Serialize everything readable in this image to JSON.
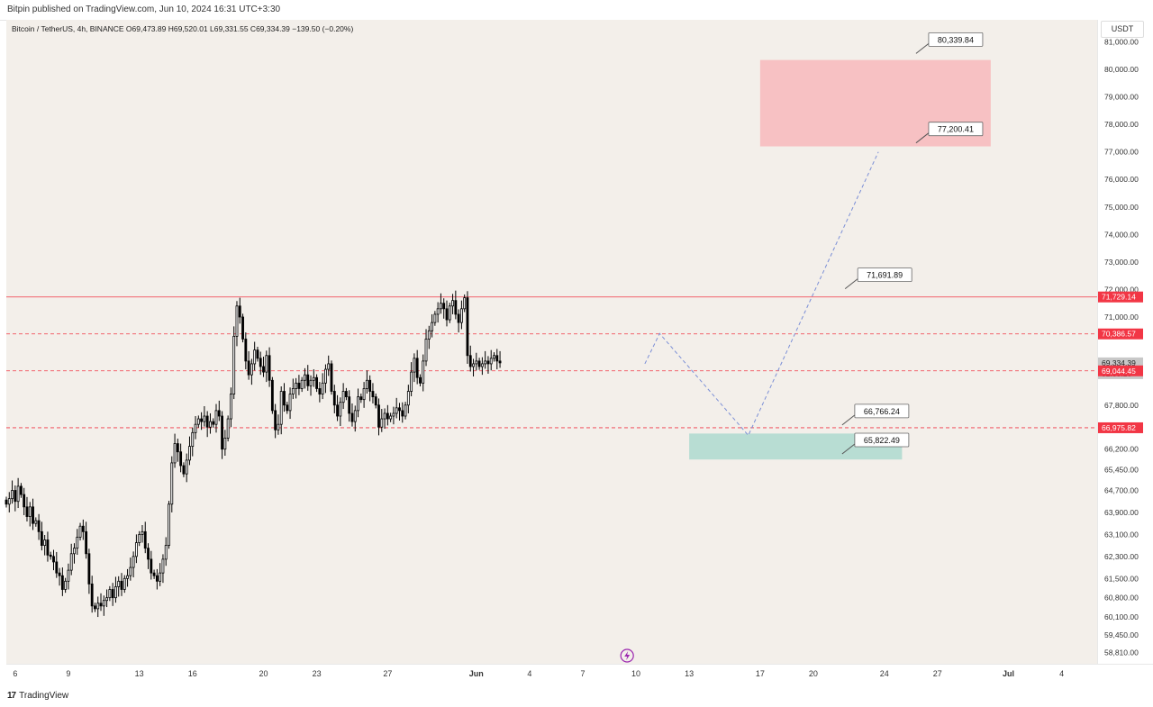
{
  "header": {
    "published": "Bitpin published on TradingView.com, Jun 10, 2024 16:31 UTC+3:30"
  },
  "legend": {
    "text": "Bitcoin / TetherUS, 4h, BINANCE  O69,473.89  H69,520.01  L69,331.55  C69,334.39  −139.50 (−0.20%)"
  },
  "currency": "USDT",
  "footer": {
    "brand": "TradingView"
  },
  "chart_data": {
    "type": "candlestick",
    "symbol": "Bitcoin / TetherUS",
    "interval": "4h",
    "exchange": "BINANCE",
    "ohlc": {
      "open": 69473.89,
      "high": 69520.01,
      "low": 69331.55,
      "close": 69334.39,
      "change": -139.5,
      "change_pct": -0.2
    },
    "ylim": [
      58400,
      81800
    ],
    "y_ticks": [
      81000,
      80000,
      79000,
      78000,
      77000,
      76000,
      75000,
      74000,
      73000,
      72000,
      71000,
      67800,
      66200,
      65450,
      64700,
      63900,
      63100,
      62300,
      61500,
      60800,
      60100,
      59450,
      58810
    ],
    "y_tick_labels": [
      "81,000.00",
      "80,000.00",
      "79,000.00",
      "78,000.00",
      "77,000.00",
      "76,000.00",
      "75,000.00",
      "74,000.00",
      "73,000.00",
      "72,000.00",
      "71,000.00",
      "67,800.00",
      "66,200.00",
      "65,450.00",
      "64,700.00",
      "63,900.00",
      "63,100.00",
      "62,300.00",
      "61,500.00",
      "60,800.00",
      "60,100.00",
      "59,450.00",
      "58,810.00"
    ],
    "x_range_days": [
      "2024-05-05T12:00",
      "2024-07-06"
    ],
    "x_ticks": [
      {
        "date": "2024-05-06",
        "label": "6",
        "bold": false
      },
      {
        "date": "2024-05-09",
        "label": "9",
        "bold": false
      },
      {
        "date": "2024-05-13",
        "label": "13",
        "bold": false
      },
      {
        "date": "2024-05-16",
        "label": "16",
        "bold": false
      },
      {
        "date": "2024-05-20",
        "label": "20",
        "bold": false
      },
      {
        "date": "2024-05-23",
        "label": "23",
        "bold": false
      },
      {
        "date": "2024-05-27",
        "label": "27",
        "bold": false
      },
      {
        "date": "2024-06-01",
        "label": "Jun",
        "bold": true
      },
      {
        "date": "2024-06-04",
        "label": "4",
        "bold": false
      },
      {
        "date": "2024-06-07",
        "label": "7",
        "bold": false
      },
      {
        "date": "2024-06-10",
        "label": "10",
        "bold": false
      },
      {
        "date": "2024-06-13",
        "label": "13",
        "bold": false
      },
      {
        "date": "2024-06-17",
        "label": "17",
        "bold": false
      },
      {
        "date": "2024-06-20",
        "label": "20",
        "bold": false
      },
      {
        "date": "2024-06-24",
        "label": "24",
        "bold": false
      },
      {
        "date": "2024-06-27",
        "label": "27",
        "bold": false
      },
      {
        "date": "2024-07-01",
        "label": "Jul",
        "bold": true
      },
      {
        "date": "2024-07-04",
        "label": "4",
        "bold": false
      }
    ],
    "candle_start": "2024-05-05T12:00",
    "candle_interval_hours": 4,
    "closes": [
      64200,
      64400,
      64700,
      64300,
      64850,
      64550,
      64100,
      63750,
      64100,
      63500,
      63600,
      63200,
      62700,
      62900,
      62350,
      62300,
      62100,
      61700,
      61600,
      61100,
      61400,
      61800,
      62400,
      62600,
      63000,
      63400,
      63200,
      62400,
      61300,
      60500,
      60400,
      60600,
      60500,
      60700,
      60800,
      61100,
      60800,
      61200,
      61400,
      61100,
      61500,
      61600,
      61900,
      62300,
      62800,
      63100,
      63200,
      62600,
      62200,
      61700,
      61600,
      61400,
      61700,
      62200,
      62700,
      64200,
      65700,
      66400,
      66100,
      65600,
      65300,
      65800,
      66300,
      66800,
      67100,
      67300,
      67200,
      67400,
      67000,
      67200,
      67100,
      67600,
      67400,
      66200,
      66600,
      67300,
      68200,
      70300,
      71400,
      71000,
      70200,
      69400,
      68900,
      69300,
      69800,
      69500,
      69200,
      69000,
      69600,
      68700,
      67600,
      66900,
      67100,
      68300,
      67800,
      67600,
      68200,
      68400,
      68600,
      68400,
      68700,
      68900,
      68500,
      68700,
      68800,
      68400,
      68200,
      68600,
      69100,
      69300,
      68300,
      67800,
      67400,
      67900,
      68300,
      68100,
      67500,
      67200,
      67600,
      68100,
      68000,
      68400,
      68700,
      68300,
      68100,
      67800,
      67000,
      67300,
      67500,
      67300,
      67400,
      67500,
      67700,
      67600,
      67400,
      67800,
      68300,
      69000,
      69500,
      68800,
      68600,
      69400,
      70200,
      70500,
      70800,
      71100,
      71300,
      71500,
      71300,
      70900,
      71400,
      71600,
      71100,
      70800,
      71300,
      71700,
      69600,
      69200,
      69300,
      69400,
      69200,
      69300,
      69400,
      69300,
      69500,
      69600,
      69400,
      69334
    ],
    "drawings": {
      "horizontal_lines": [
        {
          "price": 71729.14,
          "style": "solid",
          "color": "#f23645",
          "label": "71,729.14"
        },
        {
          "price": 70386.57,
          "style": "dashed",
          "color": "#f23645",
          "label": "70,386.57"
        },
        {
          "price": 69044.45,
          "style": "dashed",
          "color": "#f23645",
          "label": "69,044.45"
        },
        {
          "price": 66975.82,
          "style": "dashed",
          "color": "#f23645",
          "label": "66,975.82"
        }
      ],
      "zones": [
        {
          "name": "target-zone",
          "top": 80339.84,
          "bottom": 77200.41,
          "start": "2024-06-17",
          "end": "2024-06-30",
          "color": "#f7c1c3"
        },
        {
          "name": "support-zone",
          "top": 66766.24,
          "bottom": 65822.49,
          "start": "2024-06-13",
          "end": "2024-06-25",
          "color": "#b8ddd3"
        }
      ],
      "price_labels": [
        {
          "text": "80,339.84",
          "price": 81100,
          "date": "2024-06-26T12:00"
        },
        {
          "text": "77,200.41",
          "price": 77850,
          "date": "2024-06-26T12:00"
        },
        {
          "text": "71,691.89",
          "price": 72550,
          "date": "2024-06-22T12:00"
        },
        {
          "text": "66,766.24",
          "price": 67600,
          "date": "2024-06-22T08:00"
        },
        {
          "text": "65,822.49",
          "price": 66550,
          "date": "2024-06-22T08:00"
        }
      ],
      "projection_path": [
        {
          "date": "2024-06-10T12:00",
          "price": 69300
        },
        {
          "date": "2024-06-11T08:00",
          "price": 70400
        },
        {
          "date": "2024-06-16T08:00",
          "price": 66700
        },
        {
          "date": "2024-06-23T16:00",
          "price": 77000
        }
      ],
      "price_axis_tags": [
        {
          "price": 71729.14,
          "text": "71,729.14",
          "color": "#f23645",
          "text_color": "#ffffff"
        },
        {
          "price": 70386.57,
          "text": "70,386.57",
          "color": "#f23645",
          "text_color": "#ffffff"
        },
        {
          "price": 69334.39,
          "text": "69,334.39",
          "color": "#c8c8c8",
          "text_color": "#222222"
        },
        {
          "price": 69044.45,
          "text": "69,044.45",
          "color": "#f23645",
          "text_color": "#ffffff"
        },
        {
          "price": 66975.82,
          "text": "66,975.82",
          "color": "#f23645",
          "text_color": "#ffffff"
        }
      ],
      "countdown": "02:58:16"
    },
    "colors": {
      "background": "#f3efea",
      "up": "#ffffff",
      "down": "#000000",
      "wick": "#000000",
      "projection": "#7b8fd6"
    }
  }
}
